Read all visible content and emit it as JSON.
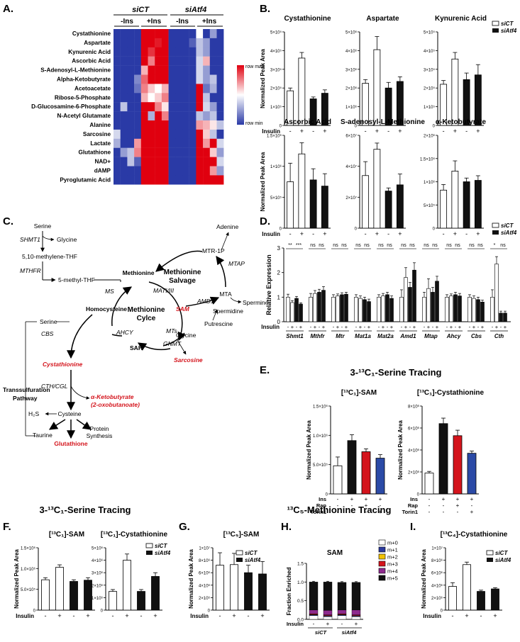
{
  "panels": {
    "A": "A.",
    "B": "B.",
    "C": "C.",
    "D": "D.",
    "E": "E.",
    "F": "F.",
    "G": "G.",
    "H": "H.",
    "I": "I."
  },
  "heatmap": {
    "groups": [
      "siCT",
      "siAtf4"
    ],
    "subgroups": [
      "-Ins",
      "+Ins",
      "-Ins",
      "+Ins"
    ],
    "rows": [
      "Cystathionine",
      "Aspartate",
      "Kynurenic Acid",
      "Ascorbic Acid",
      "S-Adenosyl-L-Methionine",
      "Alpha-Ketobutyrate",
      "Acetoacetate",
      "Ribose-5-Phosphate",
      "D-Glucosamine-6-Phosphate",
      "N-Acetyl Glutamate",
      "Alanine",
      "Sarcosine",
      "Lactate",
      "Glutathione",
      "NAD+",
      "dAMP",
      "Pyroglutamic Acid"
    ],
    "legend_max": "row max",
    "legend_min": "row min",
    "colors": {
      "high": "#e0000f",
      "mid": "#ffffff",
      "low": "#2a3aa6"
    },
    "values": [
      [
        -1,
        -1,
        -1,
        -1,
        1,
        1,
        1,
        1,
        -1,
        -1,
        -1,
        -1,
        0,
        -1,
        -0.5,
        -1
      ],
      [
        -1,
        -1,
        -1,
        -1,
        1,
        1,
        0.9,
        1,
        -1,
        -1,
        -1,
        -0.8,
        -0.3,
        -0.5,
        -1,
        -1
      ],
      [
        -1,
        -1,
        -1,
        -1,
        1,
        0.8,
        1,
        1,
        -1,
        -1,
        -1,
        -1,
        -0.3,
        -0.5,
        -1,
        -1
      ],
      [
        -1,
        -1,
        -1,
        -1,
        1,
        0.5,
        1,
        1,
        -1,
        -1,
        -1,
        -1,
        -0.2,
        0.3,
        -1,
        -1
      ],
      [
        -1,
        -1,
        -1,
        -1,
        0.3,
        1,
        1,
        1,
        -1,
        -1,
        -1,
        -1,
        -0.2,
        -0.5,
        -1,
        -1
      ],
      [
        -1,
        -1,
        -1,
        -0.6,
        0.6,
        1,
        1,
        1,
        -1,
        -1,
        -1,
        -1,
        -0.2,
        -0.5,
        -0.3,
        -1
      ],
      [
        -1,
        -1,
        -1,
        -0.7,
        0.5,
        0.2,
        0,
        0.3,
        -1,
        -1,
        -1,
        -1,
        1,
        -0.7,
        -0.4,
        -1
      ],
      [
        -1,
        -1,
        -1,
        -1,
        0.3,
        0,
        0.2,
        0.5,
        -1,
        -1,
        -1,
        -1,
        1,
        -0.3,
        -1,
        -1
      ],
      [
        -1,
        -0.3,
        -1,
        -1,
        1,
        1,
        0.5,
        0.1,
        -1,
        -1,
        -1,
        -1,
        1,
        -0.2,
        -0.5,
        -1
      ],
      [
        -1,
        -1,
        -1,
        -1,
        1,
        -0.4,
        1,
        0.5,
        -1,
        -1,
        -1,
        -1,
        -0.3,
        -0.5,
        -0.3,
        -1
      ],
      [
        -1,
        -1,
        -1,
        -1,
        1,
        1,
        1,
        1,
        -1,
        -1,
        -1,
        -1,
        0.4,
        0.3,
        0.1,
        -0.3
      ],
      [
        -0.2,
        -1,
        -1,
        -1,
        1,
        1,
        1,
        1,
        -1,
        -1,
        -1,
        -1,
        1,
        0.2,
        -0.3,
        -1
      ],
      [
        -0.4,
        -1,
        -1,
        0.4,
        1,
        1,
        1,
        1,
        -1,
        -1,
        -1,
        -1,
        1,
        0.4,
        1,
        -0.2
      ],
      [
        -1,
        -0.5,
        -0.3,
        0.5,
        1,
        1,
        1,
        1,
        -1,
        -1,
        -1,
        -1,
        1,
        1,
        0.2,
        -0.5
      ],
      [
        -1,
        -1,
        -0.3,
        -0.8,
        1,
        1,
        1,
        1,
        -1,
        -1,
        -1,
        -1,
        1,
        1,
        1,
        -0.2
      ],
      [
        -1,
        -1,
        -1,
        -1,
        1,
        1,
        1,
        1,
        -1,
        -1,
        -1,
        -1,
        1,
        1,
        0.4,
        -0.5
      ],
      [
        -1,
        -1,
        -1,
        -1,
        1,
        1,
        1,
        1,
        -1,
        -1,
        -1,
        -1,
        1,
        1,
        1,
        1
      ]
    ]
  },
  "legend": {
    "siCT": "siCT",
    "siAtf4": "siAtf4"
  },
  "chart_data": [
    {
      "id": "B1",
      "type": "bar",
      "title": "Cystathionine",
      "ylabel": "Normalized Peak Area",
      "xlabel": "Insulin",
      "ylim": [
        0,
        500000
      ],
      "ticks": [
        "0",
        "1×10⁵",
        "2×10⁵",
        "3×10⁵",
        "4×10⁵",
        "5×10⁵"
      ],
      "x": [
        "-",
        "+",
        "-",
        "+"
      ],
      "values": [
        185000,
        360000,
        142000,
        172000
      ],
      "errors": [
        15000,
        30000,
        10000,
        18000
      ],
      "fills": [
        "w",
        "w",
        "k",
        "k"
      ]
    },
    {
      "id": "B2",
      "type": "bar",
      "title": "Aspartate",
      "ylabel": "",
      "xlabel": "",
      "ylim": [
        0,
        5000000
      ],
      "ticks": [
        "0",
        "1×10⁶",
        "2×10⁶",
        "3×10⁶",
        "4×10⁶",
        "5×10⁶"
      ],
      "x": [
        "-",
        "+",
        "-",
        "+"
      ],
      "values": [
        2250000,
        4050000,
        2000000,
        2350000
      ],
      "errors": [
        200000,
        700000,
        300000,
        250000
      ],
      "fills": [
        "w",
        "w",
        "k",
        "k"
      ]
    },
    {
      "id": "B3",
      "type": "bar",
      "title": "Kynurenic Acid",
      "ylabel": "",
      "xlabel": "",
      "ylim": [
        0,
        500000
      ],
      "ticks": [
        "0",
        "1×10⁵",
        "2×10⁵",
        "3×10⁵",
        "4×10⁵",
        "5×10⁵"
      ],
      "x": [
        "-",
        "+",
        "-",
        "+"
      ],
      "values": [
        220000,
        355000,
        245000,
        270000
      ],
      "errors": [
        20000,
        35000,
        35000,
        55000
      ],
      "fills": [
        "w",
        "w",
        "k",
        "k"
      ]
    },
    {
      "id": "B4",
      "type": "bar",
      "title": "Ascorbic Acid",
      "ylabel": "Normalized Peak Area",
      "xlabel": "Insulin",
      "ylim": [
        0,
        1500000
      ],
      "ticks": [
        "0",
        "5×10⁵",
        "1×10⁶",
        "1.5×10⁶"
      ],
      "x": [
        "-",
        "+",
        "-",
        "+"
      ],
      "values": [
        750000,
        1200000,
        780000,
        680000
      ],
      "errors": [
        300000,
        180000,
        180000,
        200000
      ],
      "fills": [
        "w",
        "w",
        "k",
        "k"
      ]
    },
    {
      "id": "B5",
      "type": "bar",
      "title": "S-adenosyl-L-Methionine",
      "ylabel": "",
      "xlabel": "",
      "ylim": [
        0,
        60000000
      ],
      "ticks": [
        "0",
        "2×10⁷",
        "4×10⁷",
        "6×10⁷"
      ],
      "x": [
        "-",
        "+",
        "-",
        "+"
      ],
      "values": [
        34000000,
        51000000,
        24000000,
        28000000
      ],
      "errors": [
        9000000,
        4000000,
        2000000,
        7000000
      ],
      "fills": [
        "w",
        "w",
        "k",
        "k"
      ]
    },
    {
      "id": "B6",
      "type": "bar",
      "title": "α-Ketobutyrate",
      "ylabel": "",
      "xlabel": "",
      "ylim": [
        0,
        2000000
      ],
      "ticks": [
        "0",
        "5×10⁵",
        "1×10⁶",
        "1.5×10⁶",
        "2×10⁶"
      ],
      "x": [
        "-",
        "+",
        "-",
        "+"
      ],
      "values": [
        820000,
        1230000,
        1000000,
        1030000
      ],
      "errors": [
        120000,
        220000,
        80000,
        100000
      ],
      "fills": [
        "w",
        "w",
        "k",
        "k"
      ]
    },
    {
      "id": "D",
      "type": "bar",
      "title": "",
      "ylabel": "Relative Expression",
      "xlabel": "Insulin",
      "ylim": [
        0,
        3
      ],
      "ticks": [
        "0",
        "1",
        "2",
        "3"
      ],
      "genes": [
        "Shmt1",
        "Mthfr",
        "Mtr",
        "Mat1a",
        "Mat2a",
        "Amd1",
        "Mtap",
        "Ahcy",
        "Cbs",
        "Cth"
      ],
      "significance": [
        "** ***",
        "ns ns",
        "ns ns",
        "ns ns",
        "ns ns",
        "ns ns",
        "ns ns",
        "ns ns",
        "ns ns",
        "* ns"
      ],
      "x": [
        "-",
        "+",
        "-",
        "+"
      ],
      "values": [
        [
          1,
          0.78,
          0.95,
          0.72
        ],
        [
          1,
          1.15,
          1.2,
          1.28
        ],
        [
          1,
          1.05,
          1.1,
          1.12
        ],
        [
          1,
          0.95,
          0.9,
          0.82
        ],
        [
          1,
          1.05,
          1.1,
          0.95
        ],
        [
          1,
          1.8,
          1.4,
          2.1
        ],
        [
          1,
          1.35,
          1.2,
          1.65
        ],
        [
          1,
          1.05,
          1.1,
          1.05
        ],
        [
          1,
          0.95,
          0.9,
          0.8
        ],
        [
          1,
          2.35,
          0.35,
          0.35
        ]
      ],
      "errors": [
        [
          0.12,
          0.08,
          0.08,
          0.05
        ],
        [
          0.15,
          0.12,
          0.12,
          0.15
        ],
        [
          0.1,
          0.08,
          0.08,
          0.08
        ],
        [
          0.1,
          0.1,
          0.1,
          0.1
        ],
        [
          0.1,
          0.1,
          0.1,
          0.1
        ],
        [
          0.3,
          0.4,
          0.2,
          0.3
        ],
        [
          0.2,
          0.4,
          0.2,
          0.2
        ],
        [
          0.1,
          0.08,
          0.1,
          0.1
        ],
        [
          0.1,
          0.1,
          0.1,
          0.08
        ],
        [
          0.3,
          0.3,
          0.08,
          0.08
        ]
      ]
    },
    {
      "id": "E1",
      "type": "bar",
      "title": "[¹³C₁]-SAM",
      "ylabel": "Normalized Peak Area",
      "xlabel": "",
      "ylim": [
        0,
        1500000
      ],
      "ticks": [
        "0",
        "5.0×10⁵",
        "1.0×10⁶",
        "1.5×10⁶"
      ],
      "x": [
        "-",
        "+",
        "+",
        "+"
      ],
      "values": [
        480000,
        910000,
        720000,
        610000
      ],
      "errors": [
        150000,
        100000,
        50000,
        60000
      ],
      "fills": [
        "w",
        "k",
        "r",
        "b"
      ],
      "conditions": [
        {
          "label": "Ins",
          "signs": [
            "-",
            "+",
            "+",
            "+"
          ]
        },
        {
          "label": "Rap",
          "signs": [
            "-",
            "-",
            "+",
            "-"
          ]
        },
        {
          "label": "Torin1",
          "signs": [
            "-",
            "-",
            "-",
            "+"
          ]
        }
      ]
    },
    {
      "id": "E2",
      "type": "bar",
      "title": "[¹³C₁]-Cystathionine",
      "ylabel": "Normalized Peak Area",
      "xlabel": "",
      "ylim": [
        0,
        8000000
      ],
      "ticks": [
        "0",
        "2×10⁶",
        "4×10⁶",
        "6×10⁶",
        "8×10⁶"
      ],
      "x": [
        "-",
        "+",
        "+",
        "+"
      ],
      "values": [
        1900000,
        6400000,
        5300000,
        3700000
      ],
      "errors": [
        150000,
        500000,
        500000,
        200000
      ],
      "fills": [
        "w",
        "k",
        "r",
        "b"
      ],
      "conditions": [
        {
          "label": "Ins",
          "signs": [
            "-",
            "+",
            "+",
            "+"
          ]
        },
        {
          "label": "Rap",
          "signs": [
            "-",
            "-",
            "+",
            "-"
          ]
        },
        {
          "label": "Torin1",
          "signs": [
            "-",
            "-",
            "-",
            "+"
          ]
        }
      ]
    },
    {
      "id": "F1",
      "type": "bar",
      "title": "[¹³C₁]-SAM",
      "ylabel": "Normalized Peak Area",
      "xlabel": "Insulin",
      "ylim": [
        0,
        1500000
      ],
      "ticks": [
        "0",
        "5.0×10⁵",
        "1.0×10⁶",
        "1.5×10⁶"
      ],
      "x": [
        "-",
        "+",
        "-",
        "+"
      ],
      "values": [
        730000,
        1030000,
        690000,
        720000
      ],
      "errors": [
        50000,
        60000,
        40000,
        60000
      ],
      "fills": [
        "w",
        "w",
        "k",
        "k"
      ]
    },
    {
      "id": "F2",
      "type": "bar",
      "title": "[¹³C₁]-Cystathionine",
      "ylabel": "",
      "xlabel": "",
      "ylim": [
        0,
        5000000
      ],
      "ticks": [
        "0",
        "1×10⁶",
        "2×10⁶",
        "3×10⁶",
        "4×10⁶",
        "5×10⁶"
      ],
      "x": [
        "-",
        "+",
        "-",
        "+"
      ],
      "values": [
        1500000,
        4000000,
        1500000,
        2700000
      ],
      "errors": [
        150000,
        500000,
        150000,
        300000
      ],
      "fills": [
        "w",
        "w",
        "k",
        "k"
      ]
    },
    {
      "id": "G",
      "type": "bar",
      "title": "[¹³C₅]-SAM",
      "ylabel": "Normalized Peak Area",
      "xlabel": "Insulin",
      "ylim": [
        0,
        10000000
      ],
      "ticks": [
        "0",
        "2×10⁶",
        "4×10⁶",
        "6×10⁶",
        "8×10⁶",
        "1×10⁷"
      ],
      "x": [
        "-",
        "+",
        "-",
        "+"
      ],
      "values": [
        7200000,
        7300000,
        6000000,
        5800000
      ],
      "errors": [
        2000000,
        1800000,
        1200000,
        2000000
      ],
      "fills": [
        "w",
        "w",
        "k",
        "k"
      ]
    },
    {
      "id": "H",
      "type": "stacked-bar",
      "title": "SAM",
      "ylabel": "Fraction Enriched",
      "xlabel": "Insulin",
      "ylim": [
        0,
        1.5
      ],
      "ticks": [
        "0.0",
        "0.5",
        "1.0",
        "1.5"
      ],
      "x": [
        "-",
        "+",
        "-",
        "+"
      ],
      "groups": [
        "siCT",
        "siAtf4"
      ],
      "series": [
        {
          "name": "m+0",
          "color": "#ffffff",
          "values": [
            0.1,
            0.07,
            0.1,
            0.07
          ]
        },
        {
          "name": "m+1",
          "color": "#2b3a9e",
          "values": [
            0.02,
            0.02,
            0.02,
            0.02
          ]
        },
        {
          "name": "m+2",
          "color": "#f2c200",
          "values": [
            0.01,
            0.01,
            0.01,
            0.01
          ]
        },
        {
          "name": "m+3",
          "color": "#d4141c",
          "values": [
            0.02,
            0.02,
            0.02,
            0.02
          ]
        },
        {
          "name": "m+4",
          "color": "#8e2a8e",
          "values": [
            0.1,
            0.12,
            0.1,
            0.13
          ]
        },
        {
          "name": "m+5",
          "color": "#111111",
          "values": [
            0.75,
            0.76,
            0.74,
            0.74
          ]
        }
      ]
    },
    {
      "id": "I",
      "type": "bar",
      "title": "[¹³C₄]-Cystathionine",
      "ylabel": "Normalized Peak Area",
      "xlabel": "Insulin",
      "ylim": [
        0,
        10000000
      ],
      "ticks": [
        "0",
        "2×10⁶",
        "4×10⁶",
        "6×10⁶",
        "8×10⁶",
        "1×10⁷"
      ],
      "x": [
        "-",
        "+",
        "-",
        "+"
      ],
      "values": [
        3800000,
        7300000,
        3000000,
        3400000
      ],
      "errors": [
        600000,
        400000,
        200000,
        200000
      ],
      "fills": [
        "w",
        "w",
        "k",
        "k"
      ]
    }
  ],
  "titles": {
    "E": "3-¹³C₁-Serine Tracing",
    "F": "3-¹³C₁-Serine Tracing",
    "GI": "¹³C₅-Methionine Tracing"
  },
  "pathway": {
    "serine": "Serine",
    "shmt1": "SHMT1",
    "glycine": "Glycine",
    "methylene_thf": "5,10-methylene-THF",
    "mthfr": "MTHFR",
    "methyl_thf": "5-methyl-THF",
    "methionine": "Methionine",
    "mtr1p": "MTR-1P",
    "adenine": "Adenine",
    "mtap": "MTAP",
    "salvage1": "Methionine",
    "salvage2": "Salvage",
    "mta": "MTA",
    "ms": "MS",
    "mat": "MATI/III",
    "amd1": "AMD1",
    "spermine": "Spermine",
    "spermidine": "Spermidine",
    "putrescine": "Putrescine",
    "sam": "SAM",
    "cycle1": "Methionine",
    "cycle2": "Cylce",
    "homocysteine": "Homocysteine",
    "ahcy": "AHCY",
    "mts": "MTs",
    "glycine2": "Glycine",
    "gnmt": "GNMT",
    "sah": "SAH",
    "sarcosine": "Sarcosine",
    "serine2": "Serine",
    "cbs": "CBS",
    "cystathionine": "Cystathionine",
    "transsulf1": "Transsulfuration",
    "transsulf2": "Pathway",
    "cthcgl": "CTH/CGL",
    "aketo1": "α-Ketobutyrate",
    "aketo2": "(2-oxobutanoate)",
    "h2s": "H₂S",
    "cysteine": "Cysteine",
    "protein1": "Protein",
    "protein2": "Synthesis",
    "taurine": "Taurine",
    "glutathione": "Glutathione"
  },
  "colors": {
    "red": "#d4141c",
    "blue": "#2b4aa6",
    "black": "#111111"
  }
}
